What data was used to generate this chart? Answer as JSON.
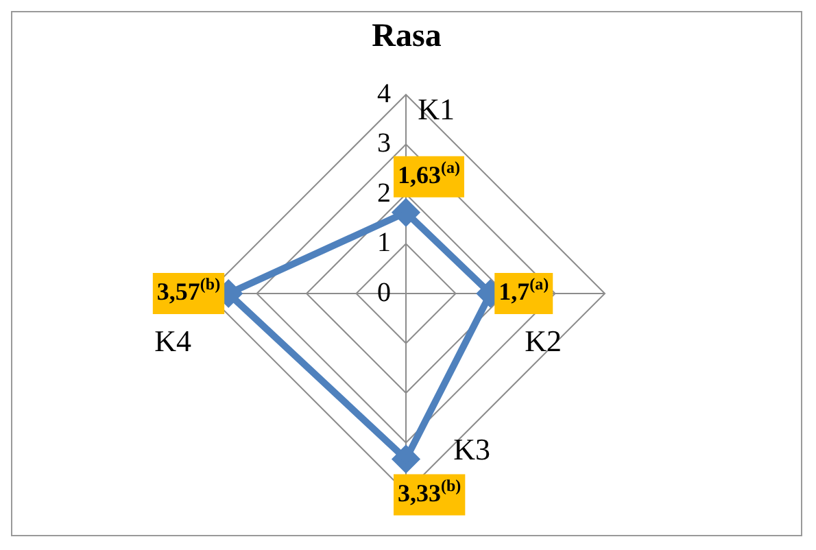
{
  "chart_data": {
    "type": "radar",
    "title": "Rasa",
    "categories": [
      "K1",
      "K2",
      "K3",
      "K4"
    ],
    "series": [
      {
        "color": "#4f81bd",
        "values": [
          1.63,
          1.7,
          3.33,
          3.57
        ],
        "value_labels": [
          "1,63$^{(a)}$",
          "1,7$^{(a)}$",
          "3,33$^{(b)}$",
          "3,57$^{(b)}$"
        ]
      }
    ],
    "ylim": [
      0,
      4
    ],
    "yticks": [
      0,
      1,
      2,
      3,
      4
    ],
    "grid": true,
    "legend": false,
    "marker": "diamond",
    "line_style": "solid"
  }
}
